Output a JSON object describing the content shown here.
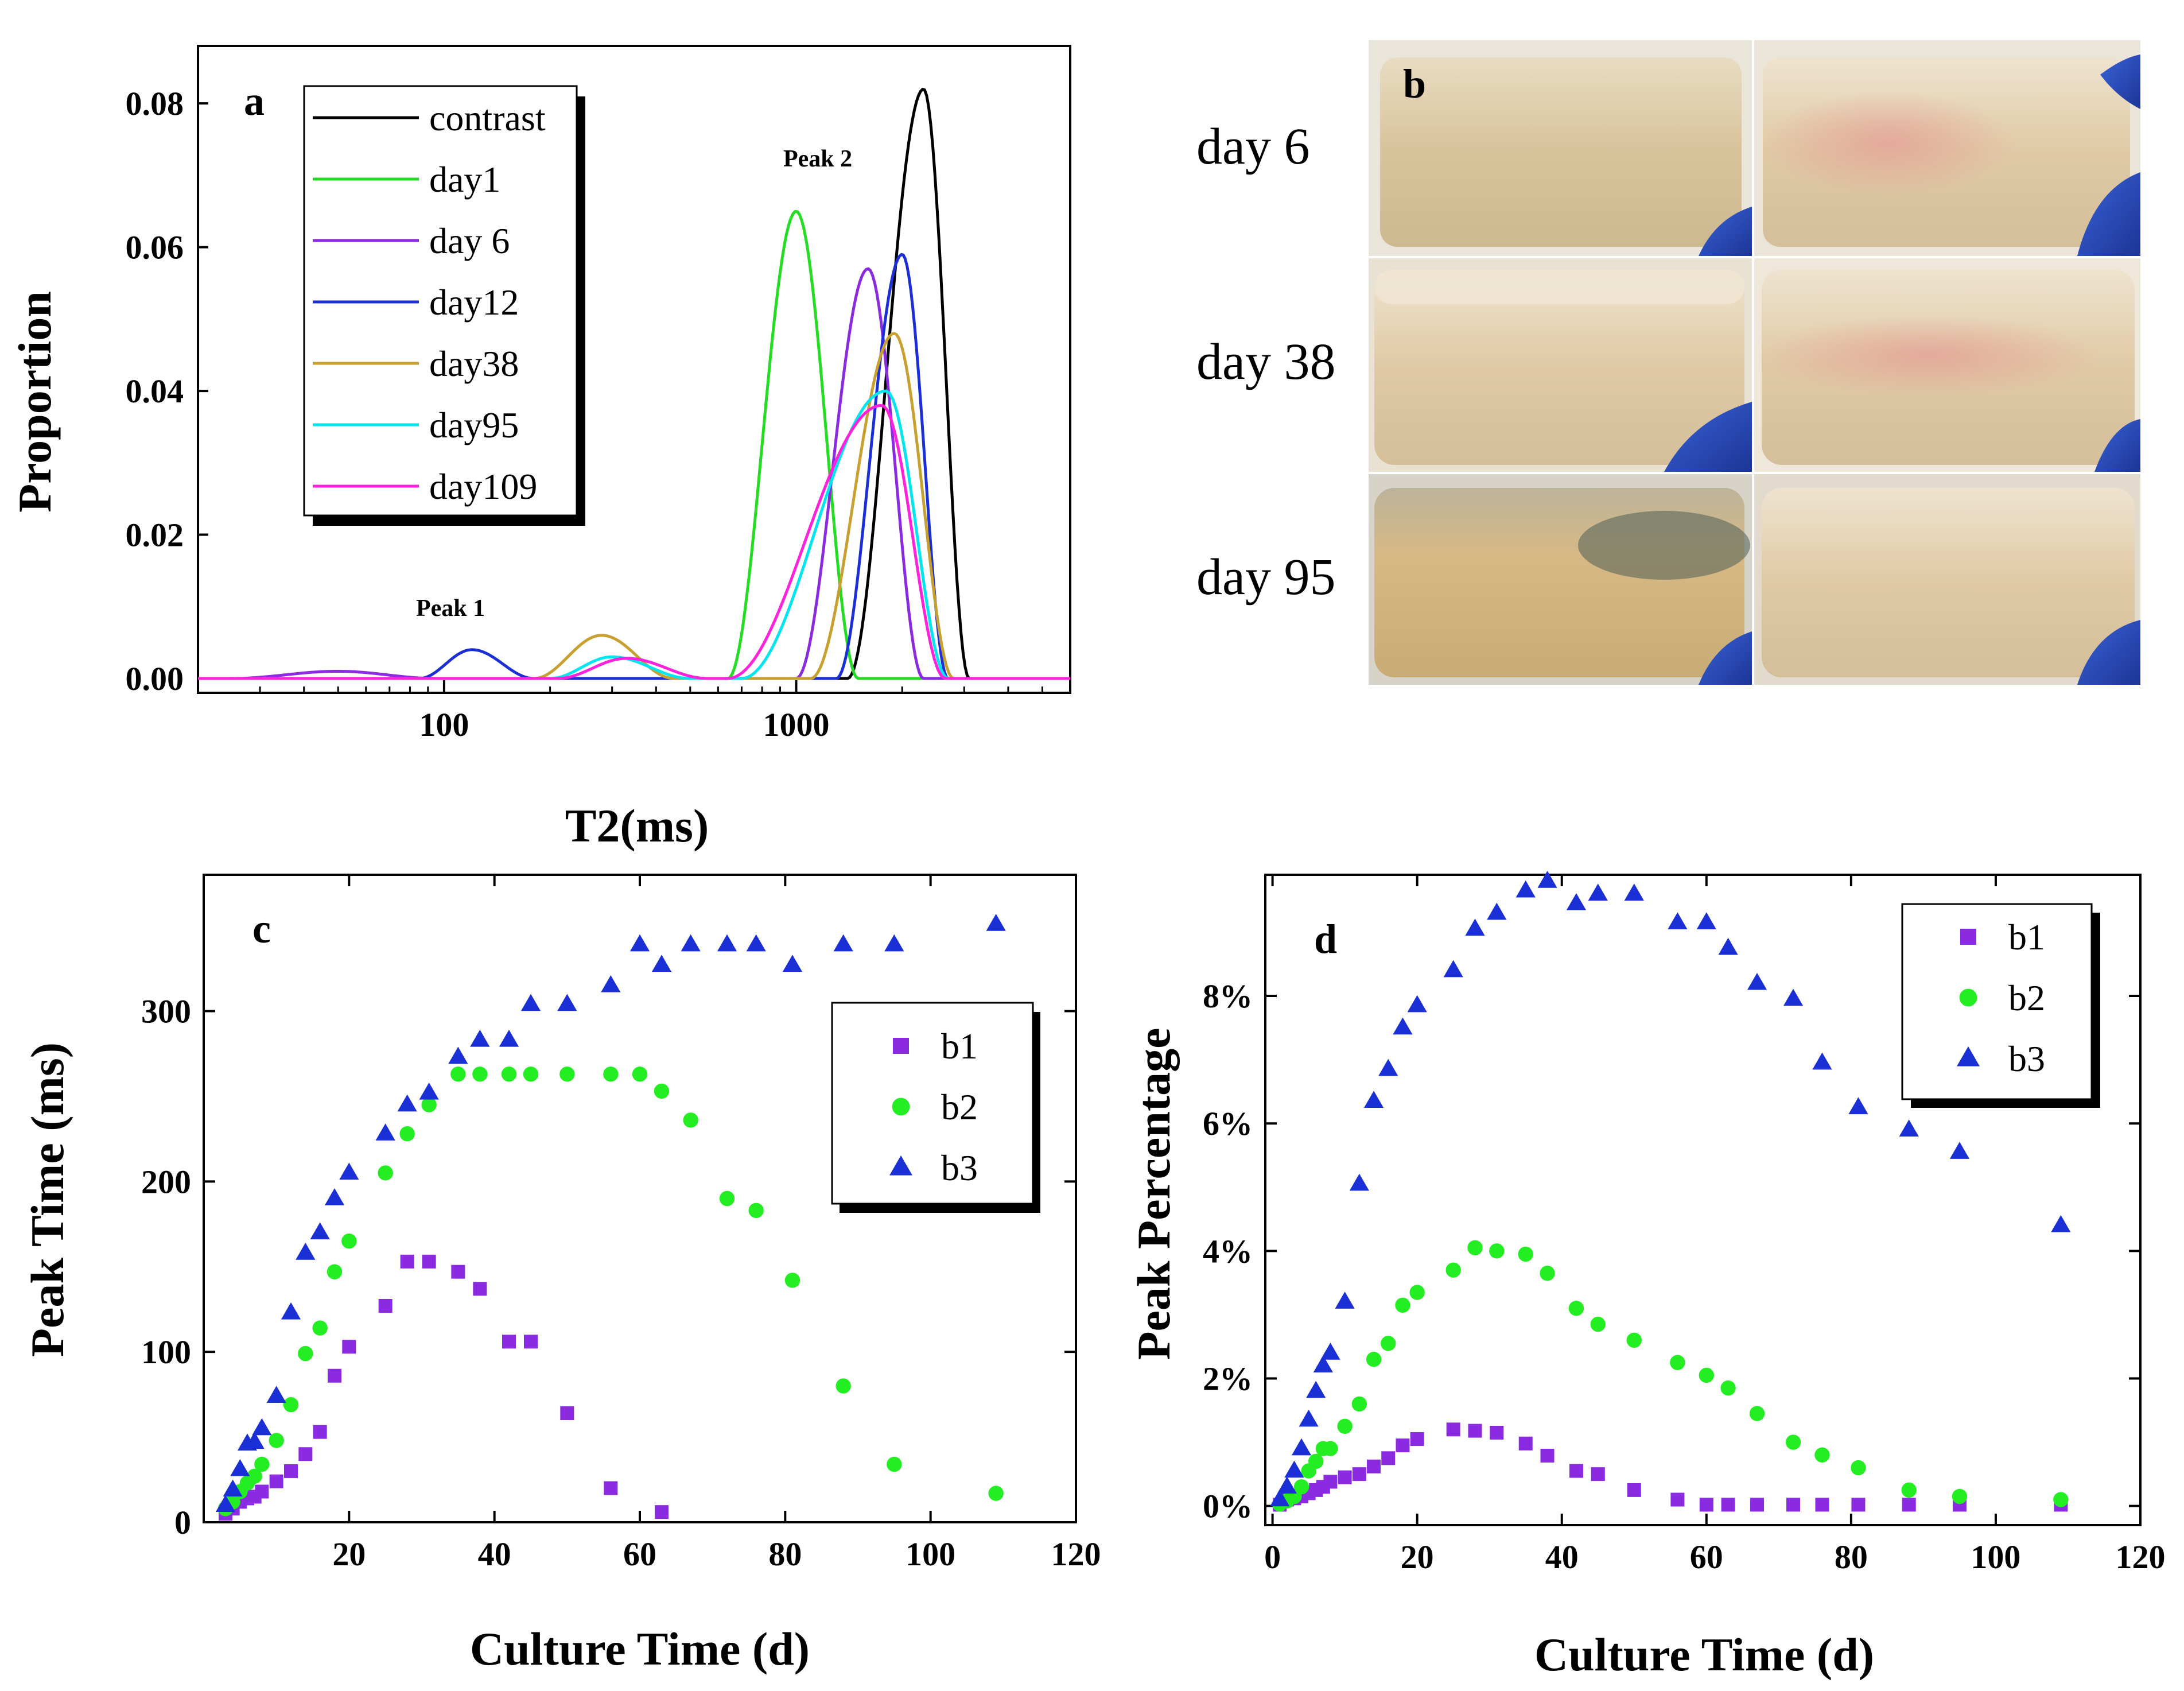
{
  "chart_data": [
    {
      "panel": "a",
      "type": "line",
      "xlabel": "T2(ms)",
      "ylabel": "Proportion",
      "xscale": "log",
      "xlim": [
        20,
        6000
      ],
      "ylim": [
        -0.002,
        0.088
      ],
      "xticks": [
        100,
        1000
      ],
      "xtick_labels": [
        "100",
        "1000"
      ],
      "yticks": [
        0.0,
        0.02,
        0.04,
        0.06,
        0.08
      ],
      "ytick_labels": [
        "0.00",
        "0.02",
        "0.04",
        "0.06",
        "0.08"
      ],
      "annotations": [
        "Peak 1",
        "Peak 2"
      ],
      "legend_position": "top-left",
      "series": [
        {
          "name": "contrast",
          "color": "#000000",
          "peaks": [
            {
              "center": 2300,
              "height": 0.082,
              "lo": 1400,
              "hi": 3100
            }
          ]
        },
        {
          "name": "day1",
          "color": "#22dd22",
          "peaks": [
            {
              "center": 1000,
              "height": 0.065,
              "lo": 640,
              "hi": 1500
            }
          ]
        },
        {
          "name": "day 6",
          "color": "#8a2be2",
          "peaks": [
            {
              "center": 50,
              "height": 0.001,
              "lo": 25,
              "hi": 95
            },
            {
              "center": 1600,
              "height": 0.057,
              "lo": 1000,
              "hi": 2300
            }
          ]
        },
        {
          "name": "day12",
          "color": "#1a2fd6",
          "peaks": [
            {
              "center": 120,
              "height": 0.004,
              "lo": 85,
              "hi": 180
            },
            {
              "center": 2000,
              "height": 0.059,
              "lo": 1300,
              "hi": 2700
            }
          ]
        },
        {
          "name": "day38",
          "color": "#c8a030",
          "peaks": [
            {
              "center": 280,
              "height": 0.006,
              "lo": 180,
              "hi": 450
            },
            {
              "center": 1900,
              "height": 0.048,
              "lo": 1100,
              "hi": 2800
            }
          ]
        },
        {
          "name": "day95",
          "color": "#00e5ee",
          "peaks": [
            {
              "center": 300,
              "height": 0.003,
              "lo": 200,
              "hi": 500
            },
            {
              "center": 1800,
              "height": 0.04,
              "lo": 700,
              "hi": 2700
            }
          ]
        },
        {
          "name": "day109",
          "color": "#ff22dd",
          "peaks": [
            {
              "center": 330,
              "height": 0.0028,
              "lo": 210,
              "hi": 560
            },
            {
              "center": 1750,
              "height": 0.038,
              "lo": 640,
              "hi": 2650
            }
          ]
        }
      ]
    },
    {
      "panel": "c",
      "type": "scatter",
      "xlabel": "Culture Time (d)",
      "ylabel": "Peak Time (ms)",
      "xlim": [
        0,
        120
      ],
      "ylim": [
        0,
        380
      ],
      "xticks": [
        20,
        40,
        60,
        80,
        100,
        120
      ],
      "xtick_labels": [
        "20",
        "40",
        "60",
        "80",
        "100",
        "120"
      ],
      "yticks": [
        0,
        100,
        200,
        300
      ],
      "ytick_labels": [
        "0",
        "100",
        "200",
        "300"
      ],
      "legend_position": "top-right",
      "series": [
        {
          "name": "b1",
          "color": "#8a2be2",
          "marker": "square",
          "x": [
            3,
            4,
            5,
            6,
            7,
            8,
            10,
            12,
            14,
            16,
            18,
            20,
            25,
            28,
            31,
            35,
            38,
            42,
            45,
            50,
            56,
            63
          ],
          "y": [
            5,
            8,
            12,
            14,
            15,
            18,
            24,
            30,
            40,
            53,
            86,
            103,
            127,
            153,
            153,
            147,
            137,
            106,
            106,
            64,
            20,
            6
          ]
        },
        {
          "name": "b2",
          "color": "#22ee22",
          "marker": "circle",
          "x": [
            3,
            4,
            5,
            6,
            7,
            8,
            10,
            12,
            14,
            16,
            18,
            20,
            25,
            28,
            31,
            35,
            38,
            42,
            45,
            50,
            56,
            60,
            63,
            67,
            72,
            76,
            81,
            88,
            95,
            109
          ],
          "y": [
            8,
            12,
            18,
            23,
            27,
            34,
            48,
            69,
            99,
            114,
            147,
            165,
            205,
            228,
            245,
            263,
            263,
            263,
            263,
            263,
            263,
            263,
            253,
            236,
            190,
            183,
            142,
            80,
            34,
            17
          ]
        },
        {
          "name": "b3",
          "color": "#1a2fd6",
          "marker": "triangle",
          "x": [
            3,
            4,
            5,
            6,
            7,
            8,
            10,
            12,
            14,
            16,
            18,
            20,
            25,
            28,
            31,
            35,
            38,
            42,
            45,
            50,
            56,
            60,
            63,
            67,
            72,
            76,
            81,
            88,
            95,
            109
          ],
          "y": [
            10,
            19,
            31,
            46,
            47,
            55,
            74,
            123,
            158,
            170,
            190,
            205,
            228,
            245,
            252,
            273,
            283,
            283,
            304,
            304,
            315,
            339,
            327,
            339,
            339,
            339,
            327,
            339,
            339,
            351
          ]
        }
      ]
    },
    {
      "panel": "d",
      "type": "scatter",
      "xlabel": "Culture Time (d)",
      "ylabel": "Peak Percentage",
      "xlim": [
        -1,
        120
      ],
      "ylim": [
        -0.3,
        9.9
      ],
      "xticks": [
        0,
        20,
        40,
        60,
        80,
        100,
        120
      ],
      "xtick_labels": [
        "0",
        "20",
        "40",
        "60",
        "80",
        "100",
        "120"
      ],
      "yticks": [
        0,
        2,
        4,
        6,
        8
      ],
      "ytick_labels": [
        "0%",
        "2%",
        "4%",
        "6%",
        "8%"
      ],
      "legend_position": "top-right",
      "series": [
        {
          "name": "b1",
          "color": "#8a2be2",
          "marker": "square",
          "x": [
            1,
            2,
            3,
            4,
            5,
            6,
            7,
            8,
            10,
            12,
            14,
            16,
            18,
            20,
            25,
            28,
            31,
            35,
            38,
            42,
            45,
            50,
            56,
            60,
            63,
            67,
            72,
            76,
            81,
            88,
            95,
            109
          ],
          "y": [
            0.02,
            0.1,
            0.12,
            0.15,
            0.2,
            0.25,
            0.3,
            0.38,
            0.45,
            0.5,
            0.62,
            0.75,
            0.95,
            1.05,
            1.2,
            1.18,
            1.15,
            0.98,
            0.79,
            0.55,
            0.5,
            0.25,
            0.1,
            0.02,
            0.02,
            0.02,
            0.02,
            0.02,
            0.02,
            0.02,
            0.02,
            0.02
          ]
        },
        {
          "name": "b2",
          "color": "#22ee22",
          "marker": "circle",
          "x": [
            1,
            2,
            3,
            4,
            5,
            6,
            7,
            8,
            10,
            12,
            14,
            16,
            18,
            20,
            25,
            28,
            31,
            35,
            38,
            42,
            45,
            50,
            56,
            60,
            63,
            67,
            72,
            76,
            81,
            88,
            95,
            109
          ],
          "y": [
            0.03,
            0.08,
            0.15,
            0.3,
            0.55,
            0.7,
            0.9,
            0.9,
            1.25,
            1.6,
            2.3,
            2.55,
            3.15,
            3.35,
            3.7,
            4.05,
            4.0,
            3.95,
            3.65,
            3.1,
            2.85,
            2.6,
            2.25,
            2.05,
            1.85,
            1.45,
            1.0,
            0.8,
            0.6,
            0.25,
            0.15,
            0.1
          ]
        },
        {
          "name": "b3",
          "color": "#1a2fd6",
          "marker": "triangle",
          "x": [
            1,
            2,
            3,
            4,
            5,
            6,
            7,
            8,
            10,
            12,
            14,
            16,
            18,
            20,
            25,
            28,
            31,
            35,
            38,
            42,
            45,
            50,
            56,
            60,
            63,
            67,
            72,
            76,
            81,
            88,
            95,
            109
          ],
          "y": [
            0.1,
            0.3,
            0.55,
            0.9,
            1.35,
            1.8,
            2.2,
            2.4,
            3.2,
            5.05,
            6.35,
            6.85,
            7.5,
            7.85,
            8.4,
            9.05,
            9.3,
            9.65,
            9.8,
            9.45,
            9.6,
            9.6,
            9.15,
            9.15,
            8.75,
            8.2,
            7.95,
            6.95,
            6.25,
            5.9,
            5.55,
            4.4
          ]
        }
      ]
    }
  ],
  "panel_labels": {
    "a": "a",
    "b": "b",
    "c": "c",
    "d": "d"
  },
  "photos": {
    "rows": [
      "day 6",
      "day 38",
      "day 95"
    ]
  }
}
